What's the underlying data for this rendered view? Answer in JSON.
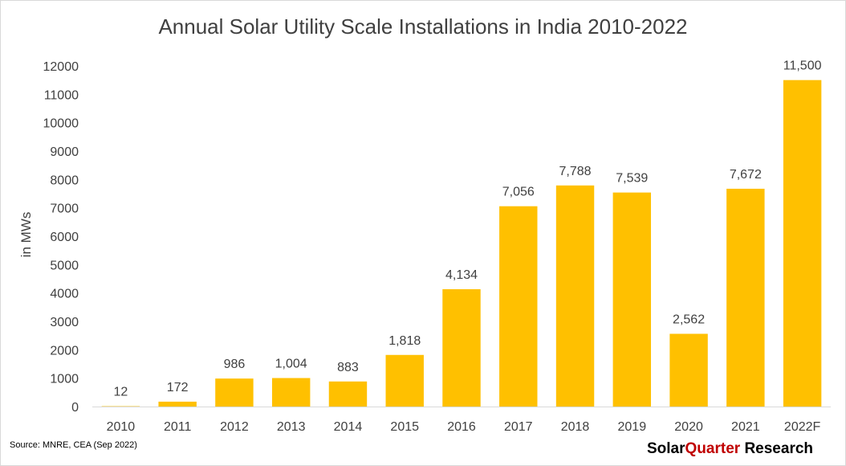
{
  "chart_data": {
    "type": "bar",
    "title": "Annual Solar Utility Scale Installations in India 2010-2022",
    "ylabel": "in MWs",
    "xlabel": "",
    "categories": [
      "2010",
      "2011",
      "2012",
      "2013",
      "2014",
      "2015",
      "2016",
      "2017",
      "2018",
      "2019",
      "2020",
      "2021",
      "2022F"
    ],
    "values": [
      12,
      172,
      986,
      1004,
      883,
      1818,
      4134,
      7056,
      7788,
      7539,
      2562,
      7672,
      11500
    ],
    "data_labels": [
      "12",
      "172",
      "986",
      "1,004",
      "883",
      "1,818",
      "4,134",
      "7,056",
      "7,788",
      "7,539",
      "2,562",
      "7,672",
      "11,500"
    ],
    "ylim": [
      0,
      12000
    ],
    "yticks": [
      0,
      1000,
      2000,
      3000,
      4000,
      5000,
      6000,
      7000,
      8000,
      9000,
      10000,
      11000,
      12000
    ],
    "grid": false,
    "bar_color": "#ffc000"
  },
  "footer": {
    "source": "Source: MNRE, CEA (Sep 2022)",
    "brand_part1": "Solar",
    "brand_part2": "Quarter",
    "brand_part3": " Research",
    "brand_accent_color": "#c00000"
  }
}
